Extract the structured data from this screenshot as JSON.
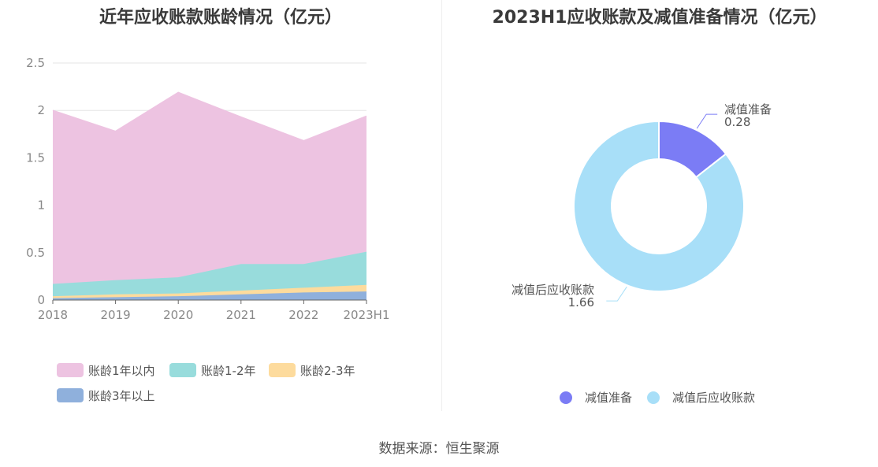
{
  "charts": {
    "left": {
      "title": "近年应收账款账龄情况（亿元）",
      "chart_data": {
        "type": "area",
        "stacked": true,
        "x": [
          "2018",
          "2019",
          "2020",
          "2021",
          "2022",
          "2023H1"
        ],
        "ylim": [
          0,
          2.5
        ],
        "yticks": [
          "0",
          "0.5",
          "1",
          "1.5",
          "2",
          "2.5"
        ],
        "grid": true,
        "legend_position": "bottom-left",
        "series": [
          {
            "name": "账龄3年以上",
            "color": "#8fb0dc",
            "values": [
              0.02,
              0.03,
              0.04,
              0.06,
              0.08,
              0.09
            ]
          },
          {
            "name": "账龄2-3年",
            "color": "#fddb9d",
            "values": [
              0.02,
              0.03,
              0.03,
              0.04,
              0.05,
              0.07
            ]
          },
          {
            "name": "账龄1-2年",
            "color": "#98dcdc",
            "values": [
              0.13,
              0.15,
              0.17,
              0.28,
              0.25,
              0.35
            ]
          },
          {
            "name": "账龄1年以内",
            "color": "#edc3e1",
            "values": [
              1.83,
              1.57,
              1.95,
              1.55,
              1.3,
              1.43
            ]
          }
        ],
        "legend_order": [
          "账龄1年以内",
          "账龄1-2年",
          "账龄2-3年",
          "账龄3年以上"
        ]
      }
    },
    "right": {
      "title": "2023H1应收账款及减值准备情况（亿元）",
      "chart_data": {
        "type": "pie",
        "donut": true,
        "legend_position": "bottom",
        "slices": [
          {
            "name": "减值准备",
            "value": 0.28,
            "label": "0.28",
            "color": "#7b7cf5"
          },
          {
            "name": "减值后应收账款",
            "value": 1.66,
            "label": "1.66",
            "color": "#a8dff8"
          }
        ]
      }
    }
  },
  "source": "数据来源：恒生聚源"
}
